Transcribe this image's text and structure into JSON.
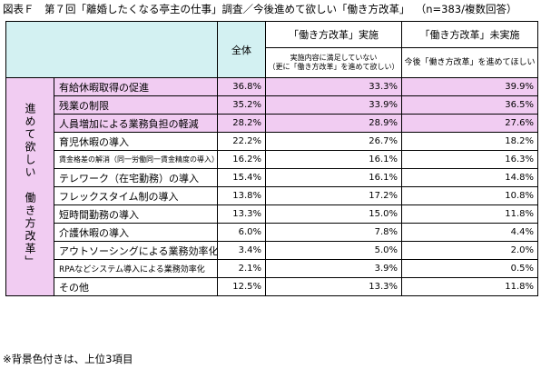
{
  "title": {
    "main": "図表Ｆ　第７回「離婚したくなる亭主の仕事」調査／今後進めて欲しい「働き方改革」",
    "n": "（n=383/複数回答）"
  },
  "header": {
    "total": "全体",
    "implemented": "「働き方改革」実施",
    "implemented_sub_line1": "実施内容に満足していない",
    "implemented_sub_line2": "（更に「働き方改革」を進めて欲しい）",
    "not_implemented": "「働き方改革」未実施",
    "not_implemented_sub": "今後「働き方改革」を進めてほしい"
  },
  "side_label": "進めて欲しい　働き方改革」",
  "rows": [
    {
      "label": "有給休暇取得の促進",
      "total": "36.8%",
      "impl": "33.3%",
      "not_impl": "39.9%",
      "highlight": true
    },
    {
      "label": "残業の制限",
      "total": "35.2%",
      "impl": "33.9%",
      "not_impl": "36.5%",
      "highlight": true
    },
    {
      "label": "人員増加による業務負担の軽減",
      "total": "28.2%",
      "impl": "28.9%",
      "not_impl": "27.6%",
      "highlight": true
    },
    {
      "label": "育児休暇の導入",
      "total": "22.2%",
      "impl": "26.7%",
      "not_impl": "18.2%",
      "highlight": false
    },
    {
      "label": "賃金格差の解消（同一労働同一賃金精度の導入）",
      "total": "16.2%",
      "impl": "16.1%",
      "not_impl": "16.3%",
      "highlight": false,
      "small": true
    },
    {
      "label": "テレワーク（在宅勤務）の導入",
      "total": "15.4%",
      "impl": "16.1%",
      "not_impl": "14.8%",
      "highlight": false
    },
    {
      "label": "フレックスタイム制の導入",
      "total": "13.8%",
      "impl": "17.2%",
      "not_impl": "10.8%",
      "highlight": false
    },
    {
      "label": "短時間勤務の導入",
      "total": "13.3%",
      "impl": "15.0%",
      "not_impl": "11.8%",
      "highlight": false
    },
    {
      "label": "介護休暇の導入",
      "total": "6.0%",
      "impl": "7.8%",
      "not_impl": "4.4%",
      "highlight": false
    },
    {
      "label": "アウトソーシングによる業務効率化",
      "total": "3.4%",
      "impl": "5.0%",
      "not_impl": "2.0%",
      "highlight": false
    },
    {
      "label": "RPAなどシステム導入による業務効率化",
      "total": "2.1%",
      "impl": "3.9%",
      "not_impl": "0.5%",
      "highlight": false,
      "medium": true
    },
    {
      "label": "その他",
      "total": "12.5%",
      "impl": "13.3%",
      "not_impl": "11.8%",
      "highlight": false
    }
  ],
  "colors": {
    "header_bg": "#d3f1f2",
    "highlight_bg": "#f1ccf2"
  },
  "note": "※背景色付きは、上位3項目"
}
